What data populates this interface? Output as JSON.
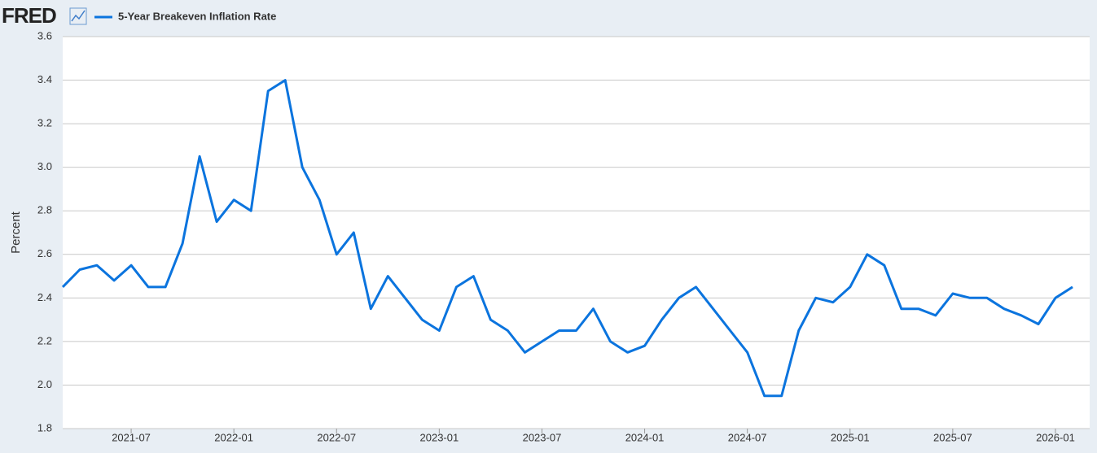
{
  "logo": "FRED",
  "chart_data": {
    "type": "line",
    "y_label": "Percent",
    "x": [
      "2021-03",
      "2021-04",
      "2021-05",
      "2021-06",
      "2021-07",
      "2021-08",
      "2021-09",
      "2021-10",
      "2021-11",
      "2021-12",
      "2022-01",
      "2022-02",
      "2022-03",
      "2022-04",
      "2022-05",
      "2022-06",
      "2022-07",
      "2022-08",
      "2022-09",
      "2022-10",
      "2022-11",
      "2022-12",
      "2023-01",
      "2023-02",
      "2023-03",
      "2023-04",
      "2023-05",
      "2023-06",
      "2023-07",
      "2023-08",
      "2023-09",
      "2023-10",
      "2023-11",
      "2023-12",
      "2024-01",
      "2024-02",
      "2024-03",
      "2024-04",
      "2024-05",
      "2024-06",
      "2024-07",
      "2024-08",
      "2024-09",
      "2024-10",
      "2024-11",
      "2024-12",
      "2025-01",
      "2025-02",
      "2025-03",
      "2025-04",
      "2025-05",
      "2025-06",
      "2025-07",
      "2025-08",
      "2025-09",
      "2025-10",
      "2025-11",
      "2025-12",
      "2026-01",
      "2026-02"
    ],
    "series": [
      {
        "name": "5-Year Breakeven Inflation Rate",
        "color": "#0b74de",
        "values": [
          2.45,
          2.53,
          2.55,
          2.48,
          2.55,
          2.45,
          2.45,
          2.65,
          3.05,
          2.75,
          2.85,
          2.8,
          3.35,
          3.4,
          3.0,
          2.85,
          2.6,
          2.7,
          2.35,
          2.5,
          2.4,
          2.3,
          2.25,
          2.45,
          2.5,
          2.3,
          2.25,
          2.15,
          2.2,
          2.25,
          2.25,
          2.35,
          2.2,
          2.15,
          2.18,
          2.3,
          2.4,
          2.45,
          2.35,
          2.25,
          2.15,
          1.95,
          1.95,
          2.25,
          2.4,
          2.38,
          2.45,
          2.6,
          2.55,
          2.35,
          2.35,
          2.32,
          2.42,
          2.4,
          2.4,
          2.35,
          2.32,
          2.28,
          2.4,
          2.45
        ]
      }
    ],
    "xlim": [
      "2021-03",
      "2026-03"
    ],
    "xticks": [
      "2021-07",
      "2022-01",
      "2022-07",
      "2023-01",
      "2023-07",
      "2024-01",
      "2024-07",
      "2025-01",
      "2025-07",
      "2026-01"
    ],
    "ylim": [
      1.8,
      3.6
    ],
    "yticks": [
      1.8,
      {
        "value": 2,
        "label": "2.0"
      },
      2.2,
      2.4,
      2.6,
      2.8,
      {
        "value": 3,
        "label": "3.0"
      },
      3.2,
      3.4,
      3.6
    ],
    "grid": true
  }
}
